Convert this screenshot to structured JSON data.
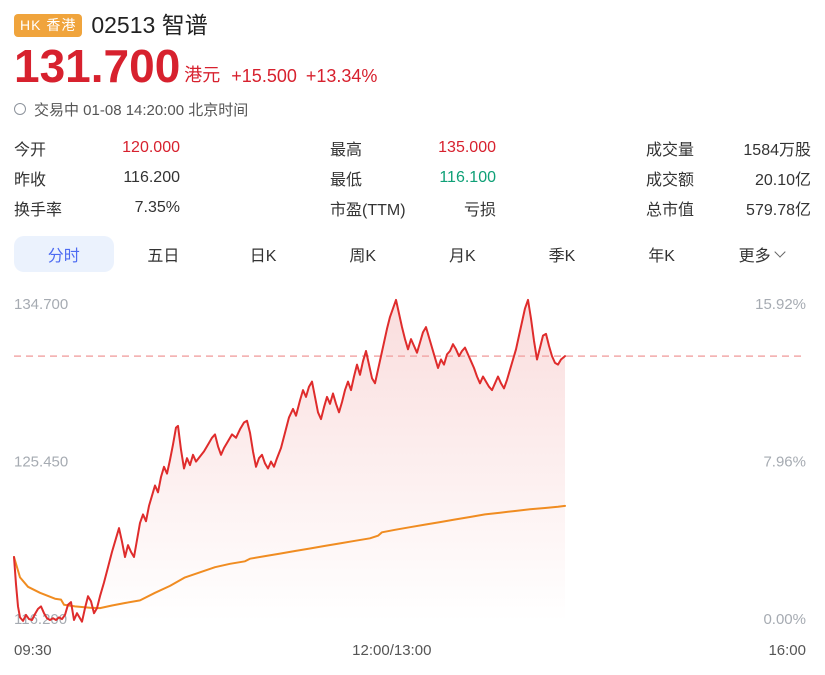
{
  "header": {
    "market_badge": "HK 香港",
    "code_name": "02513 智谱",
    "price": "131.700",
    "currency": "港元",
    "change": "+15.500",
    "change_pct": "+13.34%",
    "status": "交易中 01-08 14:20:00 北京时间",
    "colors": {
      "up_red": "#d7212e",
      "badge_bg": "#f0a43c"
    }
  },
  "stats": {
    "columns": [
      {
        "rows": [
          {
            "label": "今开",
            "value": "120.000",
            "color": "red"
          },
          {
            "label": "昨收",
            "value": "116.200",
            "color": "dark"
          },
          {
            "label": "换手率",
            "value": "7.35%",
            "color": "dark"
          }
        ]
      },
      {
        "rows": [
          {
            "label": "最高",
            "value": "135.000",
            "color": "red"
          },
          {
            "label": "最低",
            "value": "116.100",
            "color": "green"
          },
          {
            "label": "市盈(TTM)",
            "value": "亏损",
            "color": "dark"
          }
        ]
      },
      {
        "rows": [
          {
            "label": "成交量",
            "value": "1584万股",
            "color": "dark"
          },
          {
            "label": "成交额",
            "value": "20.10亿",
            "color": "dark"
          },
          {
            "label": "总市值",
            "value": "579.78亿",
            "color": "dark"
          }
        ]
      }
    ]
  },
  "tabs": [
    {
      "key": "minute",
      "label": "分时",
      "active": true
    },
    {
      "key": "five-day",
      "label": "五日"
    },
    {
      "key": "daily-k",
      "label": "日K"
    },
    {
      "key": "weekly-k",
      "label": "周K"
    },
    {
      "key": "monthly-k",
      "label": "月K"
    },
    {
      "key": "quarterly-k",
      "label": "季K"
    },
    {
      "key": "yearly-k",
      "label": "年K"
    },
    {
      "key": "more",
      "label": "更多",
      "chevron": true
    }
  ],
  "chart_data": {
    "type": "line",
    "title": "分时 (intraday price of 02513 智谱, 01-08)",
    "y_range": [
      116.2,
      134.7
    ],
    "prev_close": 116.2,
    "current_price_line": 131.7,
    "y_axis_left_labels": [
      "134.700",
      "125.450",
      "116.200"
    ],
    "y_axis_right_labels": [
      "15.92%",
      "7.96%",
      "0.00%"
    ],
    "x_ticks": [
      {
        "label": "09:30",
        "t": 0.0,
        "align": "left"
      },
      {
        "label": "12:00/13:00",
        "t": 0.477,
        "align": "center"
      },
      {
        "label": "16:00",
        "t": 1.0,
        "align": "right"
      }
    ],
    "grid": false,
    "legend": false,
    "colors": {
      "price_line": "#df2c2c",
      "avg_line": "#f08c21",
      "dash_line": "#f2a9a9",
      "fill_top": "rgba(223,44,44,0.16)",
      "fill_bottom": "rgba(223,44,44,0)"
    },
    "series": [
      {
        "name": "price",
        "points": [
          [
            0.0,
            119.9
          ],
          [
            0.0025,
            118.3
          ],
          [
            0.0051,
            117.0
          ],
          [
            0.0076,
            116.35
          ],
          [
            0.0114,
            116.15
          ],
          [
            0.0152,
            116.5
          ],
          [
            0.0189,
            116.25
          ],
          [
            0.0227,
            116.2
          ],
          [
            0.0265,
            116.55
          ],
          [
            0.0303,
            116.85
          ],
          [
            0.0341,
            117.0
          ],
          [
            0.0379,
            116.6
          ],
          [
            0.0417,
            116.3
          ],
          [
            0.0455,
            116.2
          ],
          [
            0.0492,
            116.3
          ],
          [
            0.053,
            116.2
          ],
          [
            0.0568,
            116.35
          ],
          [
            0.0606,
            116.25
          ],
          [
            0.0644,
            116.5
          ],
          [
            0.0682,
            117.1
          ],
          [
            0.072,
            117.25
          ],
          [
            0.0758,
            116.2
          ],
          [
            0.0795,
            116.6
          ],
          [
            0.0833,
            116.3
          ],
          [
            0.0859,
            116.1
          ],
          [
            0.0896,
            116.9
          ],
          [
            0.0934,
            117.6
          ],
          [
            0.0972,
            117.3
          ],
          [
            0.101,
            116.6
          ],
          [
            0.1048,
            116.9
          ],
          [
            0.1086,
            117.6
          ],
          [
            0.1136,
            118.4
          ],
          [
            0.1187,
            119.3
          ],
          [
            0.1237,
            120.2
          ],
          [
            0.1288,
            121.0
          ],
          [
            0.1326,
            121.6
          ],
          [
            0.1364,
            120.8
          ],
          [
            0.1402,
            119.9
          ],
          [
            0.1439,
            120.6
          ],
          [
            0.1477,
            120.2
          ],
          [
            0.1515,
            119.9
          ],
          [
            0.1553,
            120.9
          ],
          [
            0.1591,
            121.9
          ],
          [
            0.1629,
            122.4
          ],
          [
            0.1667,
            122.0
          ],
          [
            0.1705,
            122.9
          ],
          [
            0.1742,
            123.5
          ],
          [
            0.178,
            124.1
          ],
          [
            0.1818,
            123.7
          ],
          [
            0.1856,
            124.6
          ],
          [
            0.1894,
            125.2
          ],
          [
            0.1932,
            124.8
          ],
          [
            0.197,
            125.6
          ],
          [
            0.2008,
            126.5
          ],
          [
            0.2045,
            127.5
          ],
          [
            0.2071,
            127.6
          ],
          [
            0.2109,
            126.2
          ],
          [
            0.2146,
            125.1
          ],
          [
            0.2184,
            125.7
          ],
          [
            0.2222,
            125.3
          ],
          [
            0.226,
            125.9
          ],
          [
            0.2298,
            125.5
          ],
          [
            0.2348,
            125.8
          ],
          [
            0.2399,
            126.1
          ],
          [
            0.2449,
            126.5
          ],
          [
            0.25,
            126.9
          ],
          [
            0.2538,
            127.1
          ],
          [
            0.2576,
            126.4
          ],
          [
            0.2614,
            125.9
          ],
          [
            0.2652,
            126.3
          ],
          [
            0.2702,
            126.7
          ],
          [
            0.2753,
            127.1
          ],
          [
            0.2803,
            126.9
          ],
          [
            0.2854,
            127.4
          ],
          [
            0.2904,
            127.8
          ],
          [
            0.2942,
            127.9
          ],
          [
            0.298,
            127.2
          ],
          [
            0.3018,
            126.1
          ],
          [
            0.3056,
            125.2
          ],
          [
            0.3094,
            125.7
          ],
          [
            0.3131,
            125.9
          ],
          [
            0.3169,
            125.4
          ],
          [
            0.3207,
            125.1
          ],
          [
            0.3245,
            125.5
          ],
          [
            0.3283,
            125.2
          ],
          [
            0.3321,
            125.7
          ],
          [
            0.3371,
            126.3
          ],
          [
            0.3422,
            127.2
          ],
          [
            0.3472,
            128.1
          ],
          [
            0.3523,
            128.6
          ],
          [
            0.3561,
            128.2
          ],
          [
            0.3611,
            129.1
          ],
          [
            0.3649,
            129.7
          ],
          [
            0.3687,
            129.3
          ],
          [
            0.3725,
            129.9
          ],
          [
            0.3763,
            130.2
          ],
          [
            0.3801,
            129.3
          ],
          [
            0.3838,
            128.4
          ],
          [
            0.3876,
            128.0
          ],
          [
            0.3914,
            128.7
          ],
          [
            0.3952,
            129.3
          ],
          [
            0.399,
            128.9
          ],
          [
            0.4028,
            129.5
          ],
          [
            0.4066,
            128.9
          ],
          [
            0.4104,
            128.4
          ],
          [
            0.4141,
            129.0
          ],
          [
            0.4179,
            129.7
          ],
          [
            0.4217,
            130.2
          ],
          [
            0.4255,
            129.7
          ],
          [
            0.4293,
            130.5
          ],
          [
            0.4331,
            131.2
          ],
          [
            0.4369,
            130.6
          ],
          [
            0.4407,
            131.4
          ],
          [
            0.4444,
            132.0
          ],
          [
            0.4482,
            131.2
          ],
          [
            0.452,
            130.4
          ],
          [
            0.4558,
            130.1
          ],
          [
            0.4596,
            130.9
          ],
          [
            0.4634,
            131.7
          ],
          [
            0.4672,
            132.5
          ],
          [
            0.471,
            133.3
          ],
          [
            0.4747,
            134.0
          ],
          [
            0.4785,
            134.5
          ],
          [
            0.4823,
            135.0
          ],
          [
            0.4861,
            134.2
          ],
          [
            0.4899,
            133.4
          ],
          [
            0.4937,
            132.7
          ],
          [
            0.4975,
            132.1
          ],
          [
            0.5013,
            132.7
          ],
          [
            0.5051,
            132.3
          ],
          [
            0.5088,
            131.9
          ],
          [
            0.5126,
            132.5
          ],
          [
            0.5164,
            133.1
          ],
          [
            0.5202,
            133.4
          ],
          [
            0.524,
            132.8
          ],
          [
            0.5278,
            132.2
          ],
          [
            0.5316,
            131.6
          ],
          [
            0.5354,
            131.0
          ],
          [
            0.5391,
            131.5
          ],
          [
            0.5429,
            131.2
          ],
          [
            0.5467,
            131.8
          ],
          [
            0.5505,
            132.0
          ],
          [
            0.5543,
            132.4
          ],
          [
            0.5581,
            132.1
          ],
          [
            0.5619,
            131.7
          ],
          [
            0.5657,
            132.0
          ],
          [
            0.5694,
            132.2
          ],
          [
            0.5732,
            131.8
          ],
          [
            0.577,
            131.4
          ],
          [
            0.5808,
            131.0
          ],
          [
            0.5846,
            130.5
          ],
          [
            0.5884,
            130.1
          ],
          [
            0.5922,
            130.5
          ],
          [
            0.596,
            130.2
          ],
          [
            0.5997,
            129.9
          ],
          [
            0.6035,
            129.7
          ],
          [
            0.6073,
            130.1
          ],
          [
            0.6111,
            130.5
          ],
          [
            0.6149,
            130.1
          ],
          [
            0.6187,
            129.8
          ],
          [
            0.6225,
            130.3
          ],
          [
            0.6263,
            130.9
          ],
          [
            0.6301,
            131.5
          ],
          [
            0.6338,
            132.1
          ],
          [
            0.6376,
            132.9
          ],
          [
            0.6414,
            133.7
          ],
          [
            0.6452,
            134.5
          ],
          [
            0.649,
            135.0
          ],
          [
            0.6528,
            133.9
          ],
          [
            0.6566,
            132.6
          ],
          [
            0.6604,
            131.5
          ],
          [
            0.6641,
            132.2
          ],
          [
            0.6679,
            132.9
          ],
          [
            0.6717,
            133.0
          ],
          [
            0.6755,
            132.3
          ],
          [
            0.6793,
            131.7
          ],
          [
            0.6831,
            131.3
          ],
          [
            0.6869,
            131.2
          ],
          [
            0.6907,
            131.5
          ],
          [
            0.6957,
            131.7
          ]
        ]
      },
      {
        "name": "avg",
        "points": [
          [
            0.0,
            119.9
          ],
          [
            0.0076,
            118.7
          ],
          [
            0.0177,
            118.15
          ],
          [
            0.0328,
            117.8
          ],
          [
            0.0518,
            117.45
          ],
          [
            0.0593,
            117.4
          ],
          [
            0.0631,
            117.1
          ],
          [
            0.077,
            117.0
          ],
          [
            0.096,
            116.92
          ],
          [
            0.1086,
            116.9
          ],
          [
            0.1237,
            117.05
          ],
          [
            0.1402,
            117.2
          ],
          [
            0.1591,
            117.35
          ],
          [
            0.178,
            117.8
          ],
          [
            0.197,
            118.2
          ],
          [
            0.2159,
            118.7
          ],
          [
            0.2348,
            119.0
          ],
          [
            0.2538,
            119.3
          ],
          [
            0.2727,
            119.5
          ],
          [
            0.2917,
            119.65
          ],
          [
            0.298,
            119.8
          ],
          [
            0.3169,
            119.95
          ],
          [
            0.3359,
            120.1
          ],
          [
            0.3548,
            120.25
          ],
          [
            0.3737,
            120.4
          ],
          [
            0.3927,
            120.55
          ],
          [
            0.4116,
            120.7
          ],
          [
            0.4306,
            120.85
          ],
          [
            0.4495,
            121.0
          ],
          [
            0.4596,
            121.15
          ],
          [
            0.4646,
            121.35
          ],
          [
            0.4811,
            121.5
          ],
          [
            0.5,
            121.65
          ],
          [
            0.5189,
            121.8
          ],
          [
            0.5379,
            121.95
          ],
          [
            0.5568,
            122.1
          ],
          [
            0.5758,
            122.25
          ],
          [
            0.5947,
            122.4
          ],
          [
            0.6136,
            122.5
          ],
          [
            0.6326,
            122.6
          ],
          [
            0.6515,
            122.7
          ],
          [
            0.6705,
            122.78
          ],
          [
            0.6869,
            122.85
          ],
          [
            0.6957,
            122.9
          ]
        ]
      }
    ]
  }
}
